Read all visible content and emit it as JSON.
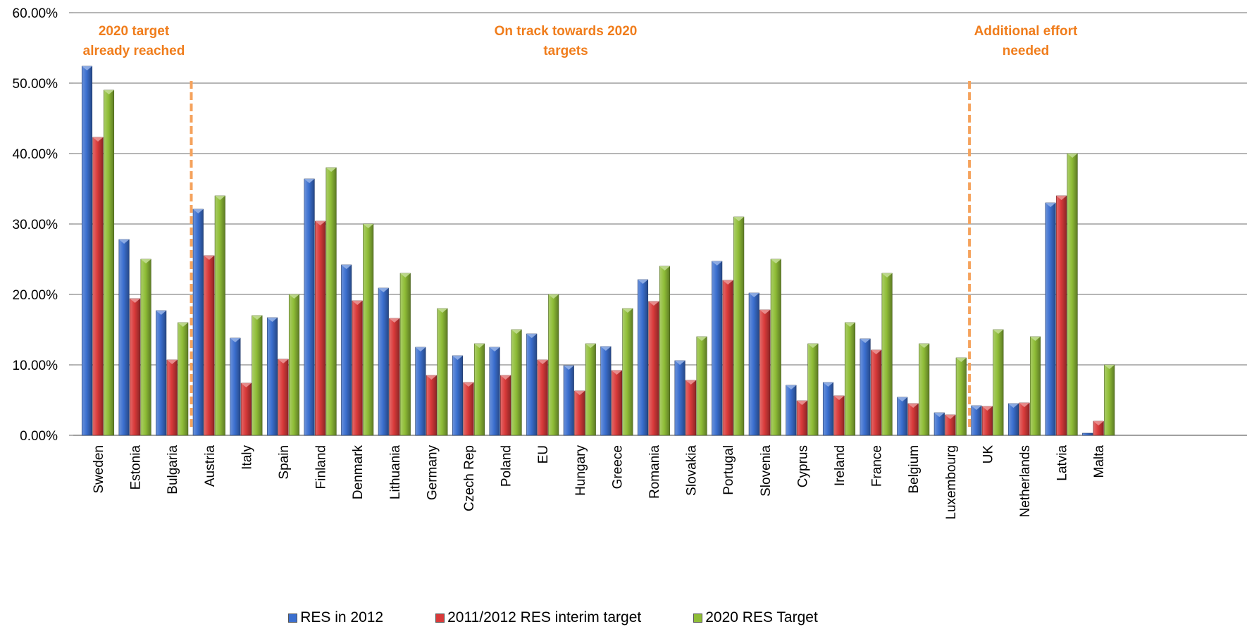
{
  "chart_data": {
    "type": "bar",
    "title": "",
    "xlabel": "",
    "ylabel": "",
    "ylim": [
      0,
      60
    ],
    "y_ticks": [
      "0.00%",
      "10.00%",
      "20.00%",
      "30.00%",
      "40.00%",
      "50.00%",
      "60.00%"
    ],
    "grid": true,
    "legend_position": "bottom",
    "categories": [
      "Sweden",
      "Estonia",
      "Bulgaria",
      "Austria",
      "Italy",
      "Spain",
      "Finland",
      "Denmark",
      "Lithuania",
      "Germany",
      "Czech Rep",
      "Poland",
      "EU",
      "Hungary",
      "Greece",
      "Romania",
      "Slovakia",
      "Portugal",
      "Slovenia",
      "Cyprus",
      "Ireland",
      "France",
      "Belgium",
      "Luxembourg",
      "UK",
      "Netherlands",
      "Latvia",
      "Malta"
    ],
    "series": [
      {
        "name": "RES in 2012",
        "color": "#3b6fcf",
        "values": [
          52.4,
          27.8,
          17.7,
          32.1,
          13.8,
          16.7,
          36.4,
          24.2,
          20.9,
          12.5,
          11.3,
          12.5,
          14.4,
          9.9,
          12.6,
          22.1,
          10.6,
          24.7,
          20.2,
          7.1,
          7.5,
          13.7,
          5.4,
          3.2,
          4.2,
          4.5,
          33.0,
          0.3
        ]
      },
      {
        "name": "2011/2012 RES interim target",
        "color": "#d93a3a",
        "values": [
          42.3,
          19.4,
          10.7,
          25.5,
          7.4,
          10.8,
          30.4,
          19.1,
          16.6,
          8.5,
          7.5,
          8.5,
          10.7,
          6.3,
          9.2,
          19.0,
          7.8,
          22.0,
          17.8,
          4.9,
          5.6,
          12.1,
          4.5,
          2.9,
          4.1,
          4.6,
          34.0,
          2.0
        ]
      },
      {
        "name": "2020 RES Target",
        "color": "#8fbd37",
        "values": [
          49,
          25,
          16,
          34,
          17,
          20,
          38,
          30,
          23,
          18,
          13,
          15,
          20,
          13,
          18,
          24,
          14,
          31,
          25,
          13,
          16,
          23,
          13,
          11,
          15,
          14,
          40,
          10
        ]
      }
    ],
    "annotations": [
      {
        "text": "2020 target\nalready reached",
        "color": "#f07d1c"
      },
      {
        "text": "On track towards 2020\ntargets",
        "color": "#f07d1c"
      },
      {
        "text": "Additional effort\nneeded",
        "color": "#f07d1c"
      }
    ],
    "divider_color": "#f5a25c"
  }
}
